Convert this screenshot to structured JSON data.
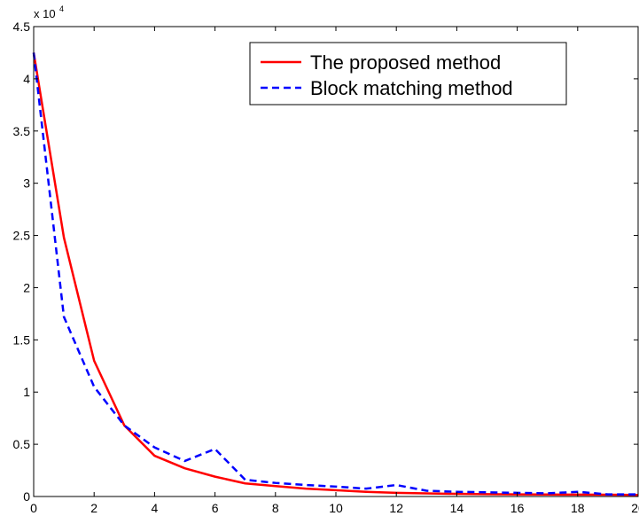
{
  "chart_data": {
    "type": "line",
    "title": "",
    "xlabel": "",
    "ylabel": "",
    "xlim": [
      0,
      20
    ],
    "ylim": [
      0,
      45000
    ],
    "x_ticks": [
      "0",
      "2",
      "4",
      "6",
      "8",
      "10",
      "12",
      "14",
      "16",
      "18",
      "20"
    ],
    "y_ticks": [
      "0",
      "0.5",
      "1",
      "1.5",
      "2",
      "2.5",
      "3",
      "3.5",
      "4",
      "4.5"
    ],
    "y_multiplier_base": "x 10",
    "y_multiplier_exp": "4",
    "grid": false,
    "legend_position": "top-right",
    "x": [
      0,
      1,
      2,
      3,
      4,
      5,
      6,
      7,
      8,
      9,
      10,
      11,
      12,
      13,
      14,
      15,
      16,
      17,
      18,
      19,
      20
    ],
    "series": [
      {
        "name": "The proposed method",
        "color": "#ff0000",
        "style": "solid",
        "values": [
          42500,
          24800,
          13000,
          6800,
          3900,
          2700,
          1900,
          1250,
          1000,
          750,
          600,
          450,
          350,
          300,
          250,
          220,
          200,
          190,
          180,
          170,
          150
        ]
      },
      {
        "name": "Block matching method",
        "color": "#0000ff",
        "style": "dashed",
        "values": [
          42500,
          17200,
          10500,
          6800,
          4700,
          3400,
          4550,
          1600,
          1300,
          1100,
          950,
          750,
          1100,
          550,
          450,
          400,
          350,
          300,
          450,
          200,
          200
        ]
      }
    ]
  }
}
